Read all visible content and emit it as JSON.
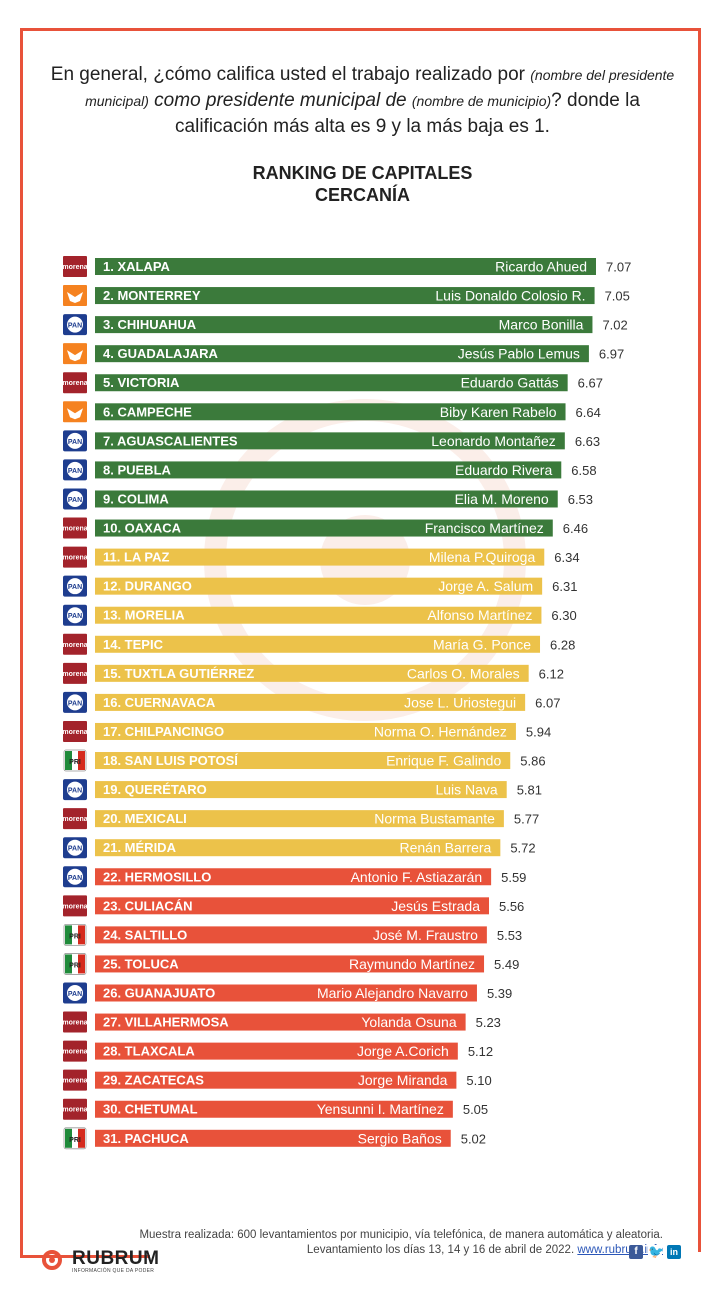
{
  "question": {
    "p1": "En general, ¿cómo califica usted el trabajo realizado por",
    "s1": "(nombre del presidente municipal)",
    "p2": "como presidente municipal de",
    "s2": "(nombre de municipio)",
    "p3": "? donde la calificación más alta es 9 y la más baja es 1."
  },
  "chart_data": {
    "type": "bar",
    "orientation": "horizontal",
    "title": "RANKING DE CAPITALES",
    "subtitle": "CERCANÍA",
    "xlim": [
      0,
      7.07
    ],
    "colors": {
      "green": "#3b7a3b",
      "yellow": "#ecc24a",
      "red": "#e8523a"
    },
    "rows": [
      {
        "label": "1. XALAPA",
        "name": "Ricardo Ahued",
        "value": 7.07,
        "party": "morena",
        "group": "green"
      },
      {
        "label": "2. MONTERREY",
        "name": "Luis Donaldo Colosio R.",
        "value": 7.05,
        "party": "mc",
        "group": "green"
      },
      {
        "label": "3. CHIHUAHUA",
        "name": "Marco Bonilla",
        "value": 7.02,
        "party": "pan",
        "group": "green"
      },
      {
        "label": "4. GUADALAJARA",
        "name": "Jesús Pablo Lemus",
        "value": 6.97,
        "party": "mc",
        "group": "green"
      },
      {
        "label": "5. VICTORIA",
        "name": "Eduardo Gattás",
        "value": 6.67,
        "party": "morena",
        "group": "green"
      },
      {
        "label": "6. CAMPECHE",
        "name": "Biby Karen Rabelo",
        "value": 6.64,
        "party": "mc",
        "group": "green"
      },
      {
        "label": "7. AGUASCALIENTES",
        "name": "Leonardo Montañez",
        "value": 6.63,
        "party": "pan",
        "group": "green"
      },
      {
        "label": "8. PUEBLA",
        "name": "Eduardo Rivera",
        "value": 6.58,
        "party": "pan",
        "group": "green"
      },
      {
        "label": "9. COLIMA",
        "name": "Elia M. Moreno",
        "value": 6.53,
        "party": "pan",
        "group": "green"
      },
      {
        "label": "10. OAXACA",
        "name": "Francisco Martínez",
        "value": 6.46,
        "party": "morena",
        "group": "green"
      },
      {
        "label": "11. LA PAZ",
        "name": "Milena P.Quiroga",
        "value": 6.34,
        "party": "morena",
        "group": "yellow"
      },
      {
        "label": "12. DURANGO",
        "name": "Jorge A. Salum",
        "value": 6.31,
        "party": "pan",
        "group": "yellow"
      },
      {
        "label": "13. MORELIA",
        "name": "Alfonso Martínez",
        "value": 6.3,
        "party": "pan",
        "group": "yellow"
      },
      {
        "label": "14. TEPIC",
        "name": "María G. Ponce",
        "value": 6.28,
        "party": "morena",
        "group": "yellow"
      },
      {
        "label": "15. TUXTLA GUTIÉRREZ",
        "name": "Carlos O. Morales",
        "value": 6.12,
        "party": "morena",
        "group": "yellow"
      },
      {
        "label": "16. CUERNAVACA",
        "name": "Jose L. Uriostegui",
        "value": 6.07,
        "party": "pan",
        "group": "yellow"
      },
      {
        "label": "17. CHILPANCINGO",
        "name": "Norma O. Hernández",
        "value": 5.94,
        "party": "morena",
        "group": "yellow"
      },
      {
        "label": "18. SAN LUIS POTOSÍ",
        "name": "Enrique F. Galindo",
        "value": 5.86,
        "party": "pri",
        "group": "yellow"
      },
      {
        "label": "19. QUERÉTARO",
        "name": "Luis Nava",
        "value": 5.81,
        "party": "pan",
        "group": "yellow"
      },
      {
        "label": "20. MEXICALI",
        "name": "Norma  Bustamante",
        "value": 5.77,
        "party": "morena",
        "group": "yellow"
      },
      {
        "label": "21. MÉRIDA",
        "name": "Renán Barrera",
        "value": 5.72,
        "party": "pan",
        "group": "yellow"
      },
      {
        "label": "22. HERMOSILLO",
        "name": "Antonio F. Astiazarán",
        "value": 5.59,
        "party": "pan",
        "group": "red"
      },
      {
        "label": "23. CULIACÁN",
        "name": "Jesús Estrada",
        "value": 5.56,
        "party": "morena",
        "group": "red"
      },
      {
        "label": "24. SALTILLO",
        "name": "José M. Fraustro",
        "value": 5.53,
        "party": "pri",
        "group": "red"
      },
      {
        "label": "25. TOLUCA",
        "name": "Raymundo  Martínez",
        "value": 5.49,
        "party": "pri",
        "group": "red"
      },
      {
        "label": "26. GUANAJUATO",
        "name": "Mario Alejandro Navarro",
        "value": 5.39,
        "party": "pan",
        "group": "red"
      },
      {
        "label": "27. VILLAHERMOSA",
        "name": "Yolanda Osuna",
        "value": 5.23,
        "party": "morena",
        "group": "red"
      },
      {
        "label": "28. TLAXCALA",
        "name": "Jorge A.Corich",
        "value": 5.12,
        "party": "morena",
        "group": "red"
      },
      {
        "label": "29. ZACATECAS",
        "name": "Jorge Miranda",
        "value": 5.1,
        "party": "morena",
        "group": "red"
      },
      {
        "label": "30. CHETUMAL",
        "name": "Yensunni I. Martínez",
        "value": 5.05,
        "party": "morena",
        "group": "red"
      },
      {
        "label": "31. PACHUCA",
        "name": "Sergio Baños",
        "value": 5.02,
        "party": "pri",
        "group": "red"
      }
    ]
  },
  "logos": {
    "morena": "morena",
    "pan": "PAN",
    "pri": "PRI",
    "mc": "mc-eagle-icon"
  },
  "footnote": {
    "line1": "Muestra realizada: 600 levantamientos por municipio, vía telefónica, de manera automática y aleatoria.",
    "line2": "Levantamiento los días 13, 14 y 16 de abril de 2022.",
    "url": "www.rubrum.info"
  },
  "brand": {
    "name": "RUBRUM",
    "tagline": "INFORMACIÓN QUE DA PODER"
  },
  "social": [
    "facebook-icon",
    "twitter-icon",
    "linkedin-icon"
  ]
}
